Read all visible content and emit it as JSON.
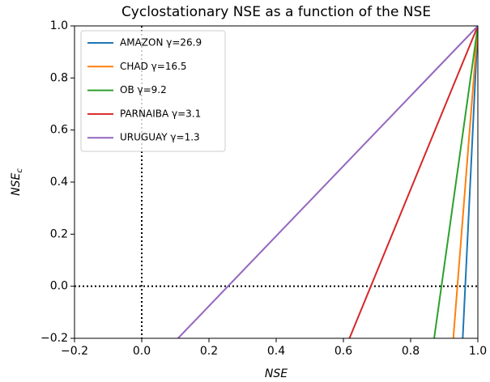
{
  "chart_data": {
    "type": "line",
    "title": "Cyclostationary NSE as a function of the NSE",
    "xlabel": "NSE",
    "ylabel": {
      "text": "NSE",
      "subscript": "c"
    },
    "xlim": [
      -0.2,
      1.0
    ],
    "ylim": [
      -0.2,
      1.0
    ],
    "xticks": [
      {
        "value": -0.2,
        "label": "−0.2"
      },
      {
        "value": 0,
        "label": "0.0"
      },
      0.2,
      0.4,
      0.6,
      0.8,
      {
        "value": 1.0,
        "label": "1.0"
      }
    ],
    "yticks": [
      {
        "value": -0.2,
        "label": "−0.2"
      },
      {
        "value": 0,
        "label": "0.0"
      },
      0.2,
      0.4,
      0.6,
      0.8,
      {
        "value": 1.0,
        "label": "1.0"
      }
    ],
    "hlines": [
      0
    ],
    "vlines": [
      0
    ],
    "legend": "upper left",
    "series": [
      {
        "name": "AMAZON γ=26.9",
        "color": "#1f77b4",
        "x": [
          0.955,
          1.0
        ],
        "values": [
          -0.2,
          1.0
        ]
      },
      {
        "name": "CHAD γ=16.5",
        "color": "#ff7f0e",
        "x": [
          0.927,
          1.0
        ],
        "values": [
          -0.2,
          1.0
        ]
      },
      {
        "name": "OB γ=9.2",
        "color": "#2ca02c",
        "x": [
          0.87,
          1.0
        ],
        "values": [
          -0.2,
          1.0
        ]
      },
      {
        "name": "PARNAIBA γ=3.1",
        "color": "#d62728",
        "x": [
          0.618,
          1.0
        ],
        "values": [
          -0.2,
          1.0
        ]
      },
      {
        "name": "URUGUAY γ=1.3",
        "color": "#9467bd",
        "x": [
          0.108,
          1.0
        ],
        "values": [
          -0.2,
          1.0
        ]
      }
    ]
  }
}
